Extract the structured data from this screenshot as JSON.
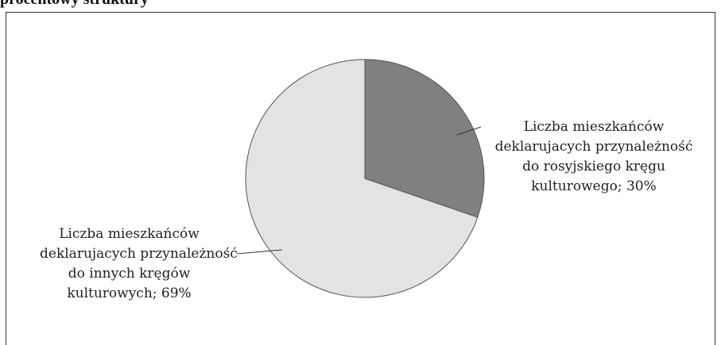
{
  "caption": "procentowy struktury",
  "chart_data": {
    "type": "pie",
    "slices": [
      {
        "label_lines": [
          "Liczba mieszkańców",
          "deklarujacych przynależność",
          "do rosyjskiego kręgu",
          "kulturowego; 30%"
        ],
        "value": 30,
        "color": "#808080"
      },
      {
        "label_lines": [
          "Liczba mieszkańców",
          "deklarujacych przynależność",
          "do innych kręgów",
          "kulturowych; 69%"
        ],
        "value": 69,
        "color": "#e3e3e3"
      }
    ],
    "stroke_color": "#555555"
  }
}
